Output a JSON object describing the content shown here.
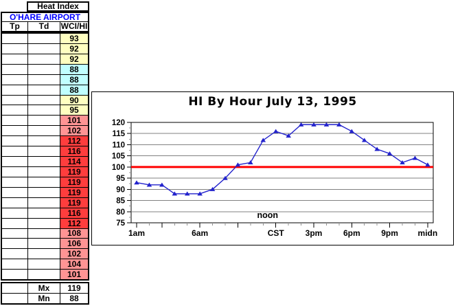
{
  "table": {
    "title": "Heat Index",
    "station": "O'HARE AIRPORT",
    "columns": [
      "Tp",
      "Td",
      "WCI/HI"
    ],
    "rows": [
      {
        "tp": "",
        "td": "",
        "hi": "93",
        "tone": "yellow"
      },
      {
        "tp": "",
        "td": "",
        "hi": "92",
        "tone": "yellow"
      },
      {
        "tp": "",
        "td": "",
        "hi": "92",
        "tone": "yellow"
      },
      {
        "tp": "",
        "td": "",
        "hi": "88",
        "tone": "cyan"
      },
      {
        "tp": "",
        "td": "",
        "hi": "88",
        "tone": "cyan"
      },
      {
        "tp": "",
        "td": "",
        "hi": "88",
        "tone": "cyan"
      },
      {
        "tp": "",
        "td": "",
        "hi": "90",
        "tone": "yellow"
      },
      {
        "tp": "",
        "td": "",
        "hi": "95",
        "tone": "yellow"
      },
      {
        "tp": "",
        "td": "",
        "hi": "101",
        "tone": "pink"
      },
      {
        "tp": "",
        "td": "",
        "hi": "102",
        "tone": "pink"
      },
      {
        "tp": "",
        "td": "",
        "hi": "112",
        "tone": "red"
      },
      {
        "tp": "",
        "td": "",
        "hi": "116",
        "tone": "red"
      },
      {
        "tp": "",
        "td": "",
        "hi": "114",
        "tone": "red"
      },
      {
        "tp": "",
        "td": "",
        "hi": "119",
        "tone": "red"
      },
      {
        "tp": "",
        "td": "",
        "hi": "119",
        "tone": "red"
      },
      {
        "tp": "",
        "td": "",
        "hi": "119",
        "tone": "red"
      },
      {
        "tp": "",
        "td": "",
        "hi": "119",
        "tone": "red"
      },
      {
        "tp": "",
        "td": "",
        "hi": "116",
        "tone": "red"
      },
      {
        "tp": "",
        "td": "",
        "hi": "112",
        "tone": "red"
      },
      {
        "tp": "",
        "td": "",
        "hi": "108",
        "tone": "pink"
      },
      {
        "tp": "",
        "td": "",
        "hi": "106",
        "tone": "pink"
      },
      {
        "tp": "",
        "td": "",
        "hi": "102",
        "tone": "pink"
      },
      {
        "tp": "",
        "td": "",
        "hi": "104",
        "tone": "pink"
      },
      {
        "tp": "",
        "td": "",
        "hi": "101",
        "tone": "pink"
      }
    ],
    "summary": [
      {
        "label": "Mx",
        "value": "119"
      },
      {
        "label": "Mn",
        "value": "88"
      }
    ]
  },
  "chart": {
    "title": "HI By Hour July 13, 1995"
  },
  "chart_data": {
    "type": "line",
    "title": "HI By Hour July 13, 1995",
    "x_hours": [
      "1am",
      "2am",
      "3am",
      "4am",
      "5am",
      "6am",
      "7am",
      "8am",
      "9am",
      "10am",
      "11am",
      "noon",
      "1pm",
      "2pm",
      "3pm",
      "4pm",
      "5pm",
      "6pm",
      "7pm",
      "8pm",
      "9pm",
      "10pm",
      "11pm",
      "midn"
    ],
    "values": [
      93,
      92,
      92,
      88,
      88,
      88,
      90,
      95,
      101,
      102,
      112,
      116,
      114,
      119,
      119,
      119,
      119,
      116,
      112,
      108,
      106,
      102,
      104,
      101
    ],
    "ylim": [
      75,
      120
    ],
    "y_ticks": [
      75,
      80,
      85,
      90,
      95,
      100,
      105,
      110,
      115,
      120
    ],
    "x_tick_labels": [
      {
        "index": 0,
        "label": "1am"
      },
      {
        "index": 5,
        "label": "6am"
      },
      {
        "index": 11,
        "label": "CST"
      },
      {
        "index": 14,
        "label": "3pm"
      },
      {
        "index": 17,
        "label": "6pm"
      },
      {
        "index": 20,
        "label": "9pm"
      },
      {
        "index": 23,
        "label": "midn"
      }
    ],
    "major_tick_indices": [
      0,
      2,
      5,
      8,
      11,
      14,
      17,
      20,
      23
    ],
    "reference_line": {
      "value": 100
    },
    "annotation": {
      "text": "noon",
      "index": 11
    },
    "grid": true,
    "legend_position": "none"
  },
  "colors": {
    "station_text": "#0000ff",
    "tones": {
      "yellow": "#ffffc0",
      "cyan": "#c0ffff",
      "pink": "#ff9494",
      "red": "#ff3d3d",
      "white": "#ffffff"
    },
    "line": "#2222cc",
    "marker": "#2222cc",
    "reference_line": "#ff0000",
    "grid": "#808080",
    "minor_tick": "#909090",
    "axis": "#000000"
  }
}
